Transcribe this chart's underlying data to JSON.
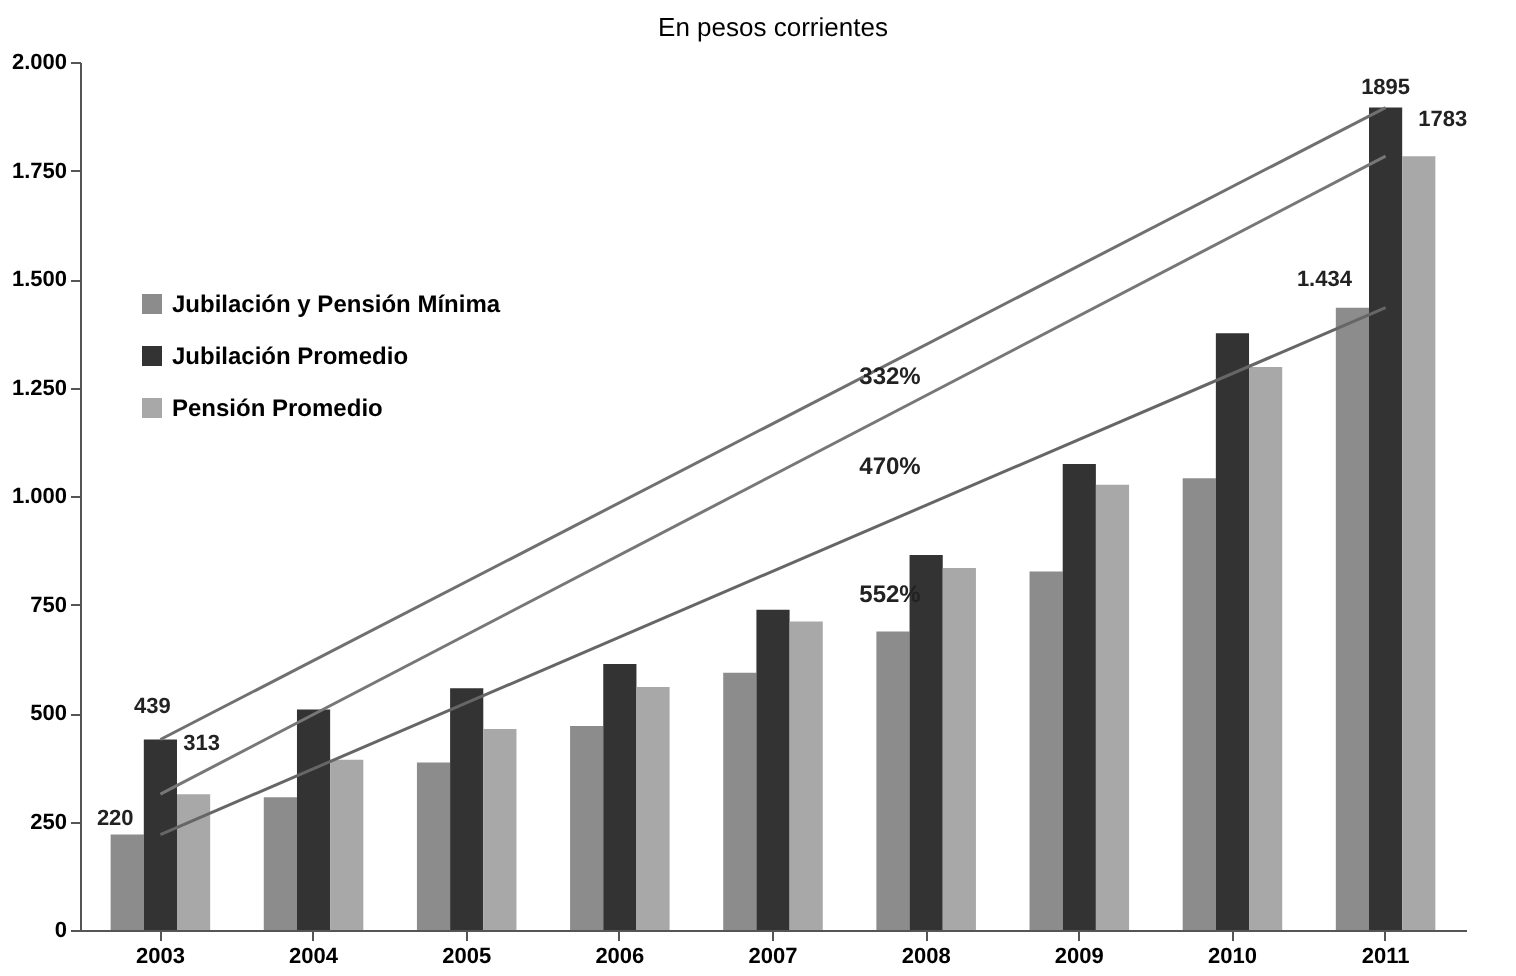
{
  "chart_data": {
    "type": "bar",
    "title": "En pesos corrientes",
    "categories": [
      "2003",
      "2004",
      "2005",
      "2006",
      "2007",
      "2008",
      "2009",
      "2010",
      "2011"
    ],
    "series": [
      {
        "name": "Jubilación y Pensión Mínima",
        "color": "#8c8c8c",
        "values": [
          220,
          306,
          386,
          470,
          593,
          688,
          826,
          1041,
          1434
        ],
        "value_labels": [
          "220",
          null,
          null,
          null,
          null,
          null,
          null,
          null,
          "1.434"
        ]
      },
      {
        "name": "Jubilación Promedio",
        "color": "#333333",
        "values": [
          439,
          508,
          557,
          613,
          738,
          864,
          1074,
          1375,
          1895
        ],
        "value_labels": [
          "439",
          null,
          null,
          null,
          null,
          null,
          null,
          null,
          "1895"
        ]
      },
      {
        "name": "Pensión Promedio",
        "color": "#a8a8a8",
        "values": [
          313,
          392,
          463,
          560,
          711,
          834,
          1026,
          1297,
          1783
        ],
        "value_labels": [
          "313",
          null,
          null,
          null,
          null,
          null,
          null,
          null,
          "1783"
        ]
      },
      {
        "type": "line",
        "color": "#707070",
        "values": [
          439,
          null,
          null,
          null,
          null,
          null,
          null,
          null,
          1895
        ]
      },
      {
        "type": "line",
        "color": "#777777",
        "values": [
          313,
          null,
          null,
          null,
          null,
          null,
          null,
          null,
          1783
        ]
      },
      {
        "type": "line",
        "color": "#666666",
        "values": [
          220,
          null,
          null,
          null,
          null,
          null,
          null,
          null,
          1434
        ]
      }
    ],
    "annotations": [
      "332%",
      "470%",
      "552%"
    ],
    "ylim": [
      0,
      2000
    ],
    "yticks": [
      0,
      {
        "value": 250,
        "label": "250"
      },
      {
        "value": 500,
        "label": "500"
      },
      {
        "value": 750,
        "label": "750"
      },
      {
        "value": 1000,
        "label": "1.000"
      },
      {
        "value": 1250,
        "label": "1.250"
      },
      {
        "value": 1500,
        "label": "1.500"
      },
      {
        "value": 1750,
        "label": "1.750"
      },
      {
        "value": 2000,
        "label": "2.000"
      }
    ],
    "grid": false,
    "legend": "left"
  }
}
